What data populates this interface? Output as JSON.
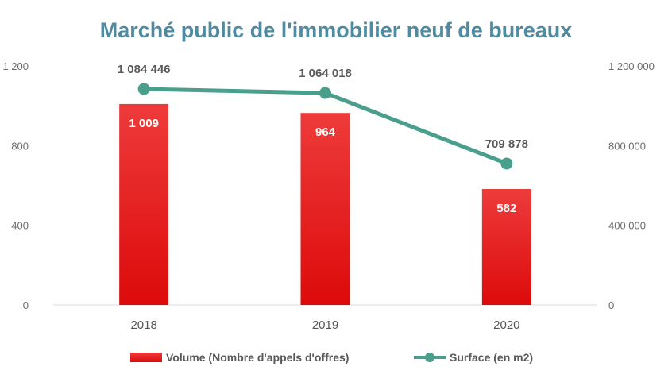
{
  "chart_data": {
    "type": "bar",
    "title": "Marché public de l'immobilier neuf de bureaux",
    "categories": [
      "2018",
      "2019",
      "2020"
    ],
    "series": [
      {
        "name": "Volume (Nombre d'appels d'offres)",
        "type": "bar",
        "axis": "left",
        "values": [
          1009,
          964,
          582
        ],
        "labels": [
          "1 009",
          "964",
          "582"
        ],
        "color": "#e31b1b"
      },
      {
        "name": "Surface (en m2)",
        "type": "line",
        "axis": "right",
        "values": [
          1084446,
          1064018,
          709878
        ],
        "labels": [
          "1 084 446",
          "1 064 018",
          "709 878"
        ],
        "color": "#4a9e8c"
      }
    ],
    "y_left": {
      "min": 0,
      "max": 1200,
      "ticks": [
        0,
        400,
        800,
        1200
      ],
      "tick_labels": [
        "0",
        "400",
        "800",
        "1 200"
      ]
    },
    "y_right": {
      "min": 0,
      "max": 1200000,
      "ticks": [
        0,
        400000,
        800000,
        1200000
      ],
      "tick_labels": [
        "0",
        "400 000",
        "800 000",
        "1 200 000"
      ]
    },
    "grid": false,
    "legend": "bottom",
    "title_color": "#4f8aa0"
  }
}
